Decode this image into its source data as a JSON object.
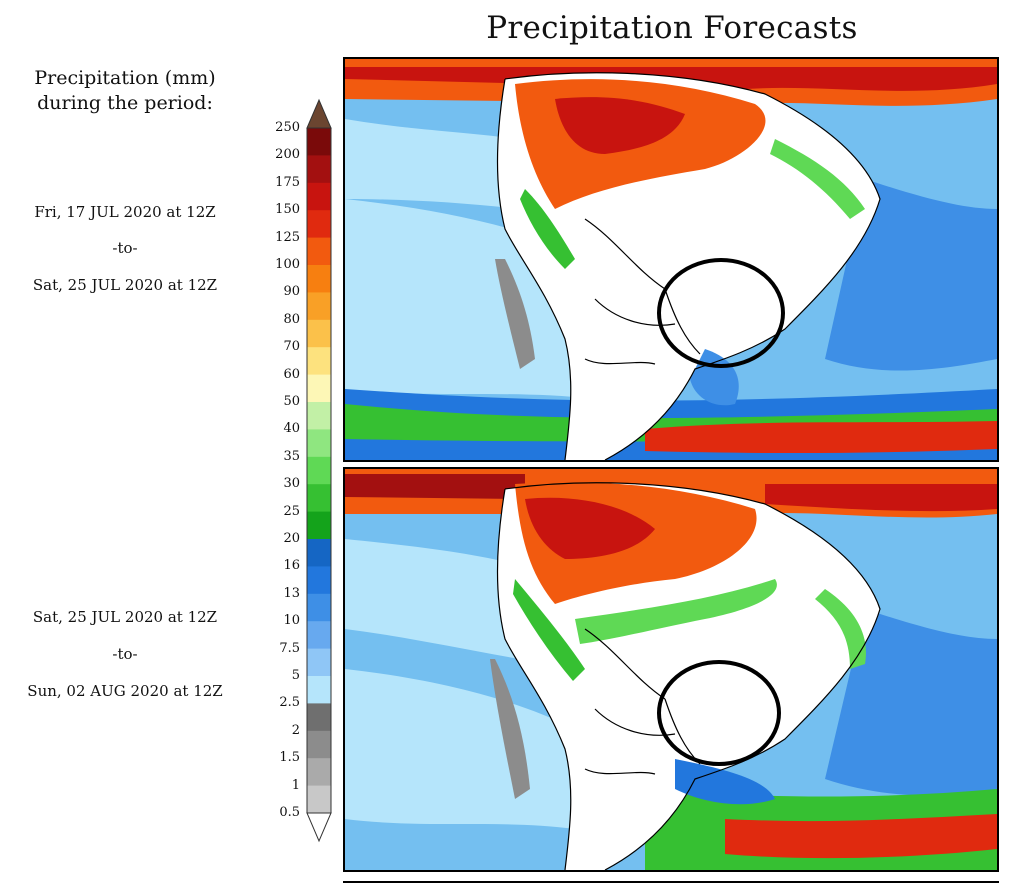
{
  "title": "Precipitation Forecasts",
  "legend": {
    "title_line1": "Precipitation (mm)",
    "title_line2": "during the period:",
    "levels": [
      "250",
      "200",
      "175",
      "150",
      "125",
      "100",
      "90",
      "80",
      "70",
      "60",
      "50",
      "40",
      "35",
      "30",
      "25",
      "20",
      "16",
      "13",
      "10",
      "7.5",
      "5",
      "2.5",
      "2",
      "1.5",
      "1",
      "0.5"
    ],
    "colors": [
      "#6b4530",
      "#7a0a0a",
      "#a31010",
      "#c8140f",
      "#e02a0f",
      "#f25a0f",
      "#f77f10",
      "#f9a026",
      "#fbc14a",
      "#fde27e",
      "#fdf7b6",
      "#c2f0a6",
      "#8fe680",
      "#5fd955",
      "#36c032",
      "#14a31b",
      "#1566c4",
      "#2277dd",
      "#3e8fe6",
      "#67a9ef",
      "#8fc6f6",
      "#b5e5fb",
      "#6f6f6f",
      "#8c8c8c",
      "#aaaaaa",
      "#c8c8c8"
    ]
  },
  "periods": [
    {
      "start": "Fri, 17 JUL 2020 at 12Z",
      "sep": "-to-",
      "end": "Sat, 25 JUL 2020 at 12Z"
    },
    {
      "start": "Sat, 25 JUL 2020 at 12Z",
      "sep": "-to-",
      "end": "Sun, 02 AUG 2020 at 12Z"
    }
  ]
}
